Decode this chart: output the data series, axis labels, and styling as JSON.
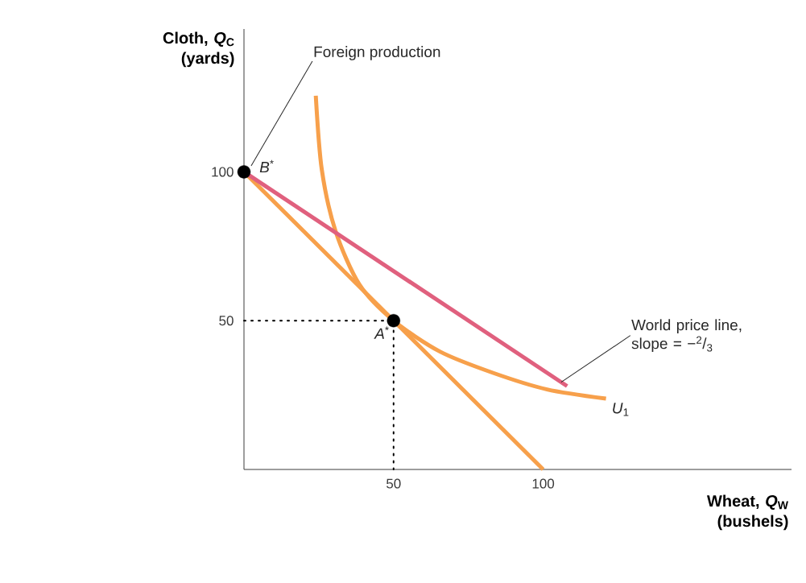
{
  "chart_data": {
    "type": "line",
    "xlabel": "Wheat, *Q*$_{W}$ (bushels)",
    "ylabel": "Cloth, *Q*$_{C}$ (yards)",
    "xlim": [
      0,
      183
    ],
    "ylim": [
      0,
      148
    ],
    "xticks": [
      50,
      100
    ],
    "yticks": [
      50,
      100
    ],
    "series": [
      {
        "type": "line",
        "color": "#f7a04b",
        "x": [
          0,
          100
        ],
        "values": [
          100,
          0
        ]
      },
      {
        "type": "line",
        "color": "#f7a04b",
        "x": [
          24,
          26,
          30.6,
          38.6,
          50,
          65.5,
          83.4,
          101.3,
          121
        ],
        "values": [
          125.6,
          100.8,
          80.1,
          62.1,
          50,
          39.6,
          32.4,
          26.9,
          23.8
        ]
      },
      {
        "type": "line",
        "color": "#e0607e",
        "x": [
          0,
          108
        ],
        "values": [
          100,
          28
        ]
      },
      {
        "type": "line",
        "color": "#000000",
        "line_style": "dotted",
        "x": [
          0,
          50,
          50
        ],
        "values": [
          50,
          50,
          0
        ]
      },
      {
        "type": "scatter",
        "color": "#000000",
        "marker": "circle",
        "x": [
          0,
          50
        ],
        "values": [
          100,
          50
        ]
      }
    ],
    "annotations": [
      {
        "text": "*B*$^{*}$",
        "x": 0,
        "y": 100
      },
      {
        "text": "*A*$^{*}$",
        "x": 50,
        "y": 50
      },
      {
        "text": "Foreign production",
        "x": 2.4,
        "y": 102
      },
      {
        "text": "World price line, slope = −$^{2}$/$_{3}$",
        "x": 106,
        "y": 29.3
      },
      {
        "text": "*U*$_{1}$",
        "x": 121,
        "y": 23.8
      }
    ]
  }
}
